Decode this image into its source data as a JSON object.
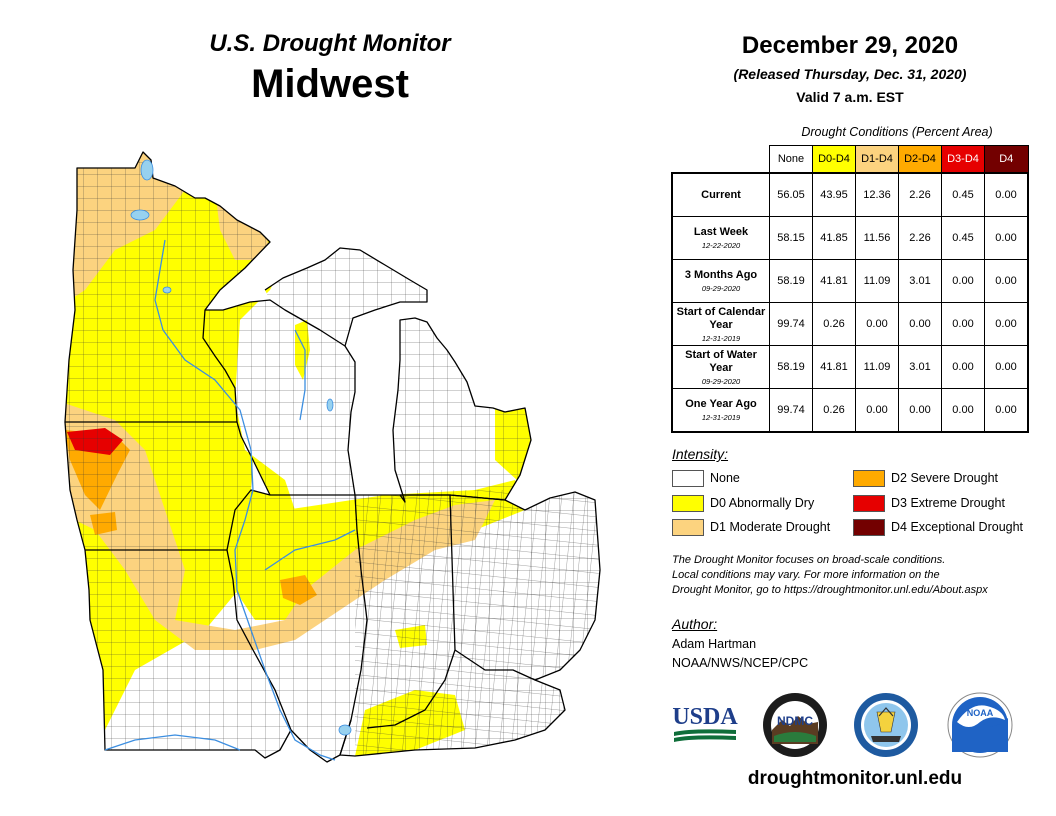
{
  "header": {
    "title": "U.S. Drought Monitor",
    "region": "Midwest",
    "date": "December 29, 2020",
    "released": "(Released Thursday, Dec. 31, 2020)",
    "valid": "Valid 7 a.m. EST"
  },
  "table": {
    "caption": "Drought Conditions (Percent Area)",
    "columns": [
      {
        "label": "None",
        "color": "#ffffff"
      },
      {
        "label": "D0-D4",
        "color": "#ffff00"
      },
      {
        "label": "D1-D4",
        "color": "#fcd37f"
      },
      {
        "label": "D2-D4",
        "color": "#ffaa00"
      },
      {
        "label": "D3-D4",
        "color": "#e60000"
      },
      {
        "label": "D4",
        "color": "#730000"
      }
    ],
    "rows": [
      {
        "label": "Current",
        "date": "",
        "values": [
          "56.05",
          "43.95",
          "12.36",
          "2.26",
          "0.45",
          "0.00"
        ]
      },
      {
        "label": "Last Week",
        "date": "12-22-2020",
        "values": [
          "58.15",
          "41.85",
          "11.56",
          "2.26",
          "0.45",
          "0.00"
        ]
      },
      {
        "label": "3 Months Ago",
        "date": "09-29-2020",
        "values": [
          "58.19",
          "41.81",
          "11.09",
          "3.01",
          "0.00",
          "0.00"
        ]
      },
      {
        "label": "Start of Calendar Year",
        "date": "12-31-2019",
        "values": [
          "99.74",
          "0.26",
          "0.00",
          "0.00",
          "0.00",
          "0.00"
        ]
      },
      {
        "label": "Start of Water Year",
        "date": "09-29-2020",
        "values": [
          "58.19",
          "41.81",
          "11.09",
          "3.01",
          "0.00",
          "0.00"
        ]
      },
      {
        "label": "One Year Ago",
        "date": "12-31-2019",
        "values": [
          "99.74",
          "0.26",
          "0.00",
          "0.00",
          "0.00",
          "0.00"
        ]
      }
    ]
  },
  "legend": {
    "title": "Intensity:",
    "items": [
      {
        "label": "None",
        "color": "#ffffff"
      },
      {
        "label": "D0 Abnormally Dry",
        "color": "#ffff00"
      },
      {
        "label": "D1 Moderate Drought",
        "color": "#fcd37f"
      },
      {
        "label": "D2 Severe Drought",
        "color": "#ffaa00"
      },
      {
        "label": "D3 Extreme Drought",
        "color": "#e60000"
      },
      {
        "label": "D4 Exceptional Drought",
        "color": "#730000"
      }
    ]
  },
  "note": {
    "line1": "The Drought Monitor focuses on broad-scale conditions.",
    "line2": "Local conditions may vary. For more information on the",
    "line3": "Drought Monitor, go to https://droughtmonitor.unl.edu/About.aspx"
  },
  "author": {
    "label": "Author:",
    "name": "Adam Hartman",
    "org": "NOAA/NWS/NCEP/CPC"
  },
  "logos": {
    "usda": "USDA",
    "ndmc": "NDMC",
    "noaa": "NOAA"
  },
  "footer": {
    "url": "droughtmonitor.unl.edu"
  },
  "colors": {
    "none": "#ffffff",
    "d0": "#ffff00",
    "d1": "#fcd37f",
    "d2": "#ffaa00",
    "d3": "#e60000",
    "d4": "#730000",
    "water": "#97d1ef"
  }
}
